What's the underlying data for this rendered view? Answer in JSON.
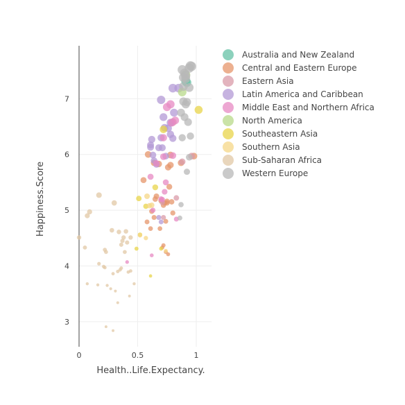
{
  "chart_data": {
    "type": "scatter",
    "title": "",
    "xlabel": "Health..Life.Expectancy.",
    "ylabel": "Happiness.Score",
    "xlim": [
      0,
      1.13
    ],
    "ylim": [
      2.55,
      7.95
    ],
    "x_ticks": [
      0,
      0.5,
      1
    ],
    "x_tick_labels": [
      "0",
      "0.5",
      "1"
    ],
    "y_ticks": [
      3,
      4,
      5,
      6,
      7
    ],
    "y_tick_labels": [
      "3",
      "4",
      "5",
      "6",
      "7"
    ],
    "grid": true,
    "legend_position": "right",
    "series": [
      {
        "name": "Australia and New Zealand",
        "color": "#66c2a5",
        "points": [
          [
            0.92,
            7.29
          ],
          [
            0.91,
            7.31
          ]
        ]
      },
      {
        "name": "Central and Eastern Europe",
        "color": "#e6956b",
        "points": [
          [
            0.61,
            4.67
          ],
          [
            0.66,
            5.25
          ],
          [
            0.55,
            5.54
          ],
          [
            0.64,
            5.85
          ],
          [
            0.58,
            4.79
          ],
          [
            0.75,
            5.13
          ],
          [
            0.77,
            5.42
          ],
          [
            0.78,
            5.99
          ],
          [
            0.8,
            4.95
          ],
          [
            0.73,
            5.13
          ],
          [
            0.74,
            4.25
          ],
          [
            0.76,
            4.21
          ],
          [
            0.64,
            4.87
          ],
          [
            0.7,
            5.17
          ],
          [
            0.79,
            5.15
          ],
          [
            0.69,
            4.67
          ],
          [
            0.76,
            5.77
          ],
          [
            0.72,
            4.37
          ],
          [
            0.71,
            4.33
          ],
          [
            0.87,
            5.85
          ],
          [
            0.59,
            6.0
          ],
          [
            0.75,
            5.16
          ],
          [
            0.68,
            5.83
          ],
          [
            0.62,
            4.98
          ],
          [
            0.72,
            5.09
          ],
          [
            0.78,
            5.81
          ],
          [
            0.98,
            5.97
          ],
          [
            0.65,
            5.2
          ],
          [
            0.74,
            4.8
          ]
        ]
      },
      {
        "name": "Eastern Asia",
        "color": "#d99ba8",
        "points": [
          [
            0.96,
            5.97
          ],
          [
            0.88,
            5.87
          ],
          [
            0.71,
            5.14
          ],
          [
            0.8,
            6.58
          ],
          [
            0.83,
            5.22
          ],
          [
            0.72,
            4.87
          ]
        ]
      },
      {
        "name": "Latin America and Caribbean",
        "color": "#b39ad6",
        "points": [
          [
            0.7,
            6.98
          ],
          [
            0.85,
            7.19
          ],
          [
            0.81,
            6.75
          ],
          [
            0.73,
            6.48
          ],
          [
            0.78,
            6.36
          ],
          [
            0.62,
            6.27
          ],
          [
            0.61,
            6.13
          ],
          [
            0.71,
            6.12
          ],
          [
            0.68,
            6.12
          ],
          [
            0.64,
            5.89
          ],
          [
            0.66,
            5.82
          ],
          [
            0.63,
            5.99
          ],
          [
            0.61,
            6.17
          ],
          [
            0.76,
            6.47
          ],
          [
            0.7,
            6.3
          ],
          [
            0.78,
            6.57
          ],
          [
            0.74,
            5.97
          ],
          [
            0.8,
            7.19
          ],
          [
            0.68,
            4.87
          ],
          [
            0.7,
            4.79
          ],
          [
            0.8,
            6.29
          ],
          [
            0.72,
            6.67
          ]
        ]
      },
      {
        "name": "Middle East and Northern Africa",
        "color": "#e78ac3",
        "points": [
          [
            0.78,
            6.9
          ],
          [
            0.79,
            6.57
          ],
          [
            0.82,
            6.61
          ],
          [
            0.75,
            6.85
          ],
          [
            0.72,
            6.3
          ],
          [
            0.72,
            5.96
          ],
          [
            0.61,
            5.6
          ],
          [
            0.66,
            5.84
          ],
          [
            0.7,
            5.2
          ],
          [
            0.73,
            5.33
          ],
          [
            0.74,
            5.5
          ],
          [
            0.62,
            4.19
          ],
          [
            0.41,
            4.07
          ],
          [
            0.63,
            5.0
          ],
          [
            0.71,
            5.19
          ],
          [
            0.83,
            4.84
          ],
          [
            0.8,
            5.98
          ]
        ]
      },
      {
        "name": "North America",
        "color": "#b8d98a",
        "points": [
          [
            0.88,
            7.12
          ],
          [
            0.91,
            7.43
          ]
        ]
      },
      {
        "name": "Southeastern Asia",
        "color": "#e8d44a",
        "points": [
          [
            1.02,
            6.8
          ],
          [
            0.72,
            6.45
          ],
          [
            0.65,
            5.41
          ],
          [
            0.57,
            5.07
          ],
          [
            0.7,
            4.31
          ],
          [
            0.51,
            5.21
          ],
          [
            0.61,
            3.82
          ],
          [
            0.52,
            4.56
          ],
          [
            0.49,
            4.31
          ]
        ]
      },
      {
        "name": "Southern Asia",
        "color": "#f5d787",
        "points": [
          [
            0.58,
            5.25
          ],
          [
            0.57,
            4.5
          ],
          [
            0.74,
            4.27
          ],
          [
            0.52,
            4.55
          ],
          [
            0.62,
            5.09
          ],
          [
            0.6,
            5.08
          ]
        ]
      },
      {
        "name": "Sub-Saharan Africa",
        "color": "#e1c8a6",
        "points": [
          [
            0.05,
            4.33
          ],
          [
            0.07,
            4.9
          ],
          [
            0.09,
            4.97
          ],
          [
            0.17,
            5.27
          ],
          [
            0.3,
            5.13
          ],
          [
            0.28,
            4.64
          ],
          [
            0.34,
            4.61
          ],
          [
            0.38,
            4.51
          ],
          [
            0.4,
            4.62
          ],
          [
            0.44,
            4.51
          ],
          [
            0.41,
            4.42
          ],
          [
            0.36,
            4.38
          ],
          [
            0.22,
            4.29
          ],
          [
            0.23,
            4.25
          ],
          [
            0.17,
            4.04
          ],
          [
            0.21,
            3.99
          ],
          [
            0.35,
            3.93
          ],
          [
            0.42,
            3.89
          ],
          [
            0.44,
            3.91
          ],
          [
            0.27,
            3.59
          ],
          [
            0.31,
            3.55
          ],
          [
            0.24,
            3.65
          ],
          [
            0.16,
            3.66
          ],
          [
            0.07,
            3.68
          ],
          [
            0.33,
            3.34
          ],
          [
            0.43,
            3.46
          ],
          [
            0.29,
            3.86
          ],
          [
            0.23,
            2.91
          ],
          [
            0.29,
            2.84
          ],
          [
            0.0,
            4.51
          ],
          [
            0.47,
            3.68
          ],
          [
            0.33,
            3.9
          ],
          [
            0.36,
            3.96
          ],
          [
            0.37,
            4.45
          ],
          [
            0.39,
            4.25
          ],
          [
            0.22,
            3.97
          ]
        ]
      },
      {
        "name": "Western Europe",
        "color": "#b8b8b8",
        "points": [
          [
            0.95,
            7.59
          ],
          [
            0.88,
            7.52
          ],
          [
            0.94,
            7.55
          ],
          [
            0.9,
            7.46
          ],
          [
            0.91,
            7.41
          ],
          [
            0.89,
            7.38
          ],
          [
            0.91,
            7.36
          ],
          [
            0.94,
            7.2
          ],
          [
            0.89,
            7.22
          ],
          [
            0.92,
            6.94
          ],
          [
            0.89,
            6.95
          ],
          [
            0.91,
            6.9
          ],
          [
            0.87,
            6.75
          ],
          [
            0.93,
            6.58
          ],
          [
            0.88,
            6.3
          ],
          [
            0.95,
            6.33
          ],
          [
            0.94,
            5.95
          ],
          [
            0.92,
            5.69
          ],
          [
            0.87,
            5.1
          ],
          [
            0.86,
            4.86
          ],
          [
            0.9,
            6.67
          ],
          [
            0.96,
            7.58
          ]
        ]
      }
    ]
  }
}
